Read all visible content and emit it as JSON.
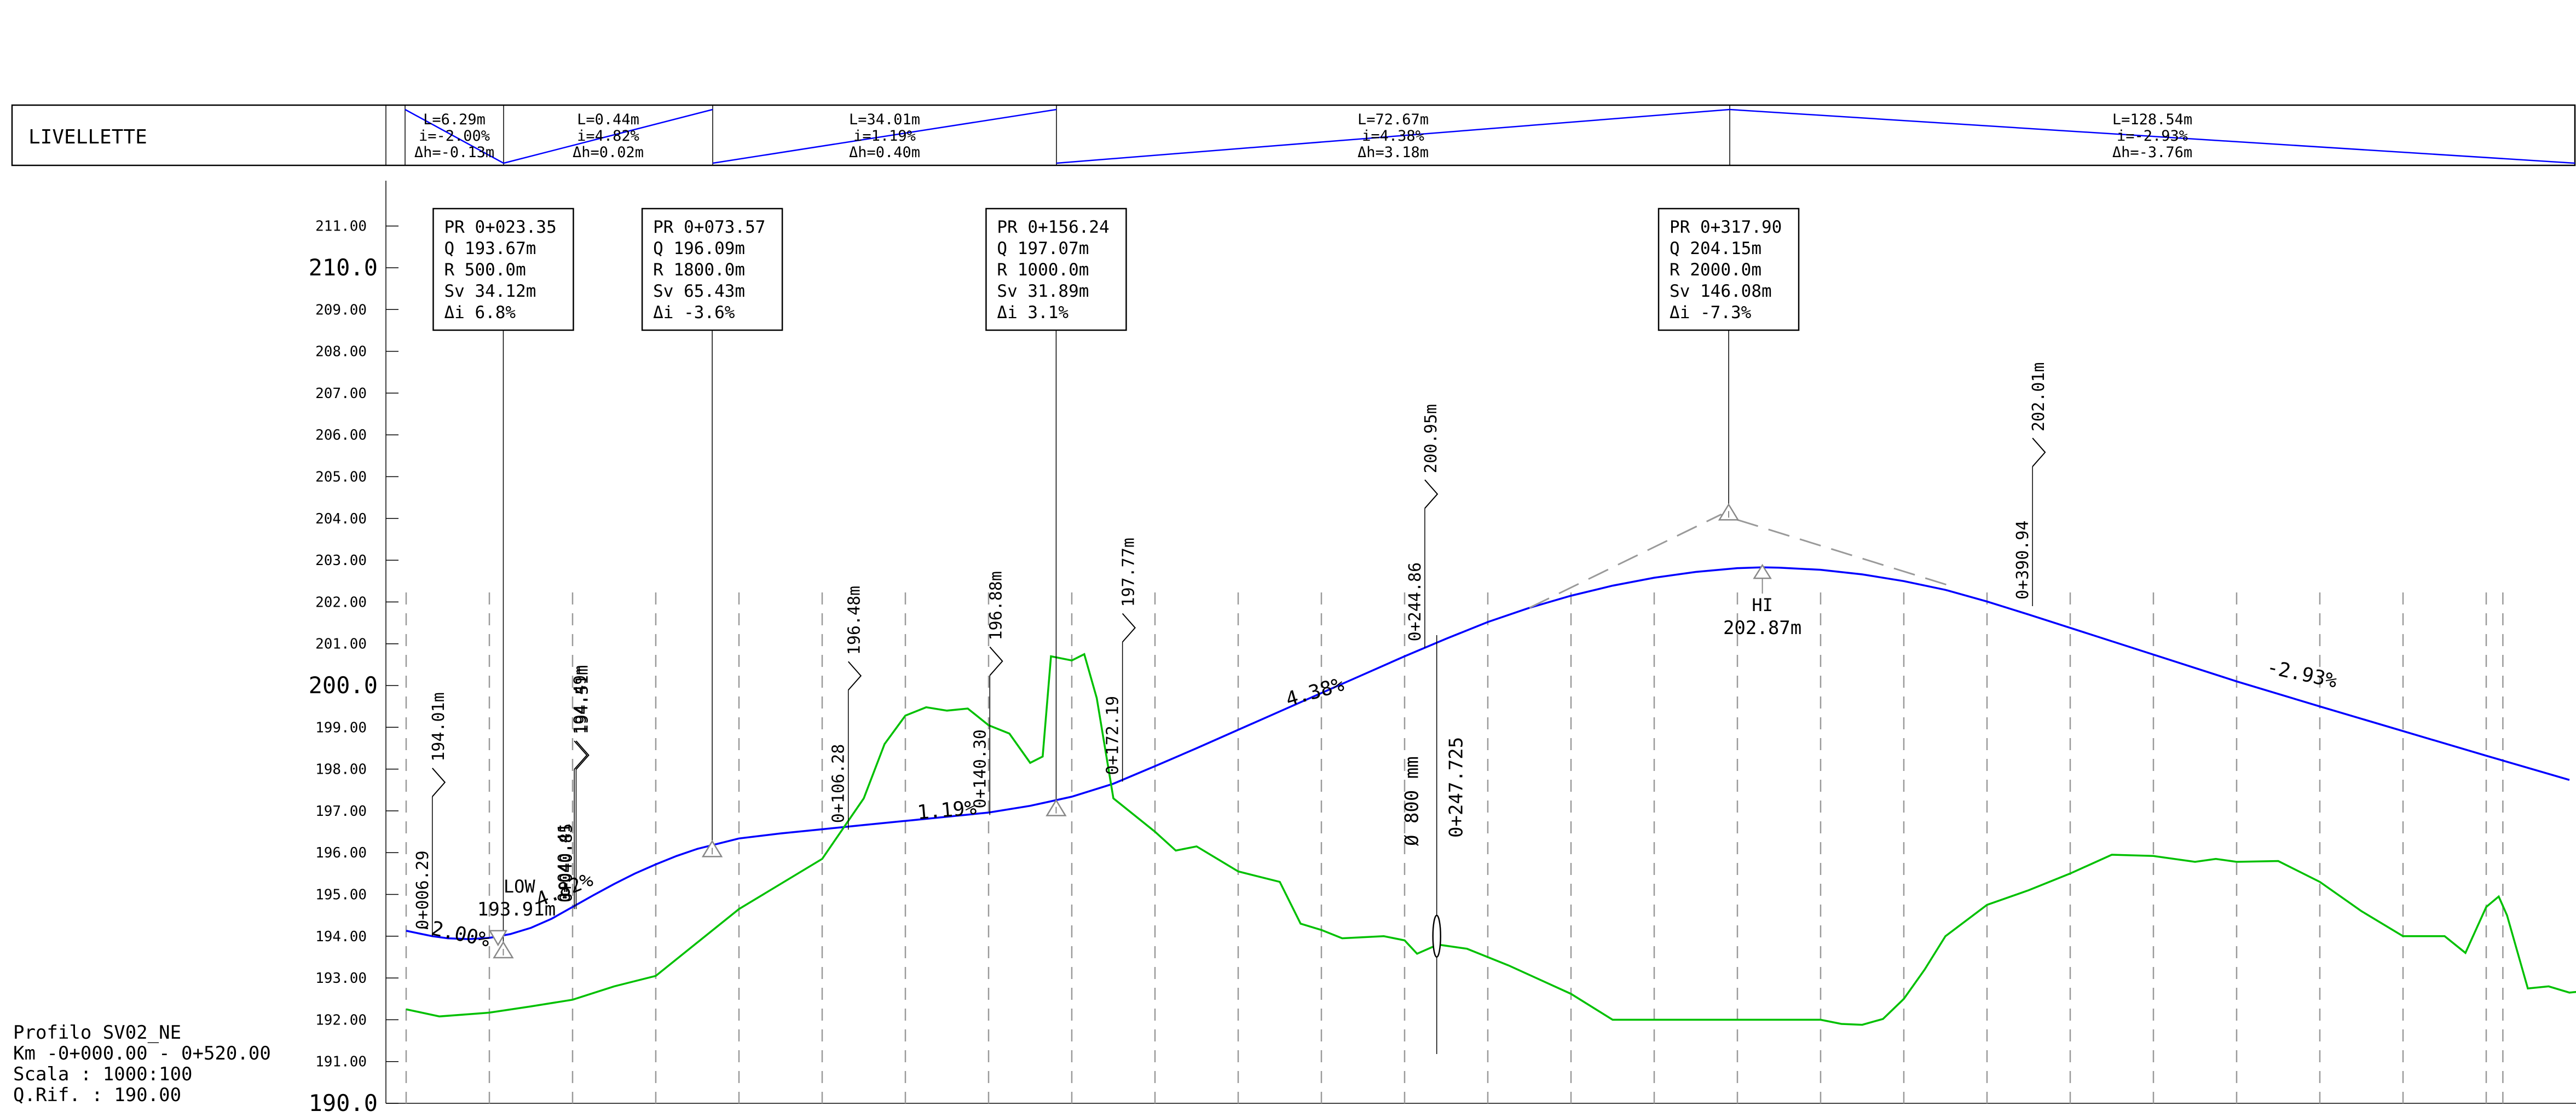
{
  "livellette": {
    "label": "LIVELLETTE",
    "segments": [
      {
        "L": "L=6.29m",
        "i": "i=-2.00%",
        "dh": "Δh=-0.13m"
      },
      {
        "L": "L=0.44m",
        "i": "i=4.82%",
        "dh": "Δh=0.02m"
      },
      {
        "L": "L=34.01m",
        "i": "i=1.19%",
        "dh": "Δh=0.40m"
      },
      {
        "L": "L=72.67m",
        "i": "i=4.38%",
        "dh": "Δh=3.18m"
      },
      {
        "L": "L=128.54m",
        "i": "i=-2.93%",
        "dh": "Δh=-3.76m"
      }
    ]
  },
  "y_axis": {
    "ticks": [
      {
        "v": 190,
        "label": "190.0",
        "major": true
      },
      {
        "v": 191,
        "label": "191.00"
      },
      {
        "v": 192,
        "label": "192.00"
      },
      {
        "v": 193,
        "label": "193.00"
      },
      {
        "v": 194,
        "label": "194.00"
      },
      {
        "v": 195,
        "label": "195.00"
      },
      {
        "v": 196,
        "label": "196.00"
      },
      {
        "v": 197,
        "label": "197.00"
      },
      {
        "v": 198,
        "label": "198.00"
      },
      {
        "v": 199,
        "label": "199.00"
      },
      {
        "v": 200,
        "label": "200.0",
        "major": true
      },
      {
        "v": 201,
        "label": "201.00"
      },
      {
        "v": 202,
        "label": "202.00"
      },
      {
        "v": 203,
        "label": "203.00"
      },
      {
        "v": 204,
        "label": "204.00"
      },
      {
        "v": 205,
        "label": "205.00"
      },
      {
        "v": 206,
        "label": "206.00"
      },
      {
        "v": 207,
        "label": "207.00"
      },
      {
        "v": 208,
        "label": "208.00"
      },
      {
        "v": 209,
        "label": "209.00"
      },
      {
        "v": 210,
        "label": "210.0",
        "major": true
      },
      {
        "v": 211,
        "label": "211.00"
      }
    ]
  },
  "chart_data": {
    "type": "line",
    "x_unit": "m",
    "y_unit": "m",
    "xlim": [
      -5,
      520
    ],
    "ylim": [
      190,
      212
    ],
    "grid_x": [
      0,
      20,
      40,
      60,
      80,
      100,
      120,
      140,
      160,
      180,
      200,
      220,
      240,
      260,
      280,
      300,
      320,
      340,
      360,
      380,
      400,
      420,
      440,
      460,
      480,
      500,
      504
    ],
    "series": [
      {
        "color": "#0000ff",
        "points": [
          [
            0,
            194.13
          ],
          [
            6.3,
            194.0
          ],
          [
            10,
            193.95
          ],
          [
            15,
            193.93
          ],
          [
            20,
            193.96
          ],
          [
            25,
            194.05
          ],
          [
            30,
            194.2
          ],
          [
            35,
            194.42
          ],
          [
            40,
            194.7
          ],
          [
            45,
            194.98
          ],
          [
            50,
            195.25
          ],
          [
            55,
            195.5
          ],
          [
            60,
            195.72
          ],
          [
            65,
            195.92
          ],
          [
            70,
            196.09
          ],
          [
            80,
            196.34
          ],
          [
            90,
            196.46
          ],
          [
            100,
            196.56
          ],
          [
            110,
            196.66
          ],
          [
            120,
            196.76
          ],
          [
            130,
            196.86
          ],
          [
            140,
            196.96
          ],
          [
            150,
            197.12
          ],
          [
            160,
            197.34
          ],
          [
            170,
            197.65
          ],
          [
            180,
            198.07
          ],
          [
            190,
            198.5
          ],
          [
            200,
            198.94
          ],
          [
            210,
            199.38
          ],
          [
            220,
            199.82
          ],
          [
            230,
            200.26
          ],
          [
            240,
            200.7
          ],
          [
            250,
            201.12
          ],
          [
            260,
            201.52
          ],
          [
            270,
            201.86
          ],
          [
            280,
            202.15
          ],
          [
            290,
            202.39
          ],
          [
            300,
            202.58
          ],
          [
            310,
            202.72
          ],
          [
            320,
            202.81
          ],
          [
            326,
            202.83
          ],
          [
            330,
            202.82
          ],
          [
            340,
            202.77
          ],
          [
            350,
            202.66
          ],
          [
            360,
            202.5
          ],
          [
            370,
            202.29
          ],
          [
            380,
            202.01
          ],
          [
            390,
            201.7
          ],
          [
            400,
            201.38
          ],
          [
            420,
            200.74
          ],
          [
            440,
            200.1
          ],
          [
            460,
            199.5
          ],
          [
            480,
            198.91
          ],
          [
            500,
            198.32
          ],
          [
            520,
            197.74
          ]
        ]
      },
      {
        "color": "#00c000",
        "points": [
          [
            0,
            192.25
          ],
          [
            8,
            192.08
          ],
          [
            20,
            192.17
          ],
          [
            30,
            192.32
          ],
          [
            40,
            192.48
          ],
          [
            50,
            192.8
          ],
          [
            60,
            193.05
          ],
          [
            70,
            193.85
          ],
          [
            80,
            194.65
          ],
          [
            100,
            195.85
          ],
          [
            110,
            197.3
          ],
          [
            115,
            198.6
          ],
          [
            120,
            199.28
          ],
          [
            125,
            199.48
          ],
          [
            130,
            199.4
          ],
          [
            135,
            199.45
          ],
          [
            140,
            199.05
          ],
          [
            145,
            198.85
          ],
          [
            150,
            198.15
          ],
          [
            153,
            198.3
          ],
          [
            155,
            200.7
          ],
          [
            160,
            200.6
          ],
          [
            163,
            200.75
          ],
          [
            166,
            199.7
          ],
          [
            170,
            197.3
          ],
          [
            175,
            196.9
          ],
          [
            180,
            196.5
          ],
          [
            185,
            196.05
          ],
          [
            190,
            196.15
          ],
          [
            195,
            195.85
          ],
          [
            200,
            195.55
          ],
          [
            210,
            195.3
          ],
          [
            215,
            194.3
          ],
          [
            220,
            194.15
          ],
          [
            225,
            193.95
          ],
          [
            235,
            194.0
          ],
          [
            240,
            193.9
          ],
          [
            243,
            193.58
          ],
          [
            248,
            193.8
          ],
          [
            255,
            193.7
          ],
          [
            265,
            193.3
          ],
          [
            280,
            192.62
          ],
          [
            290,
            192.0
          ],
          [
            340,
            192.0
          ],
          [
            345,
            191.9
          ],
          [
            350,
            191.88
          ],
          [
            355,
            192.02
          ],
          [
            360,
            192.5
          ],
          [
            365,
            193.2
          ],
          [
            370,
            194.0
          ],
          [
            380,
            194.75
          ],
          [
            390,
            195.1
          ],
          [
            400,
            195.5
          ],
          [
            410,
            195.95
          ],
          [
            420,
            195.92
          ],
          [
            430,
            195.78
          ],
          [
            435,
            195.85
          ],
          [
            440,
            195.78
          ],
          [
            450,
            195.8
          ],
          [
            460,
            195.3
          ],
          [
            470,
            194.6
          ],
          [
            480,
            194.0
          ],
          [
            490,
            194.0
          ],
          [
            495,
            193.6
          ],
          [
            500,
            194.7
          ],
          [
            503,
            194.95
          ],
          [
            505,
            194.5
          ],
          [
            510,
            192.75
          ],
          [
            515,
            192.8
          ],
          [
            520,
            192.65
          ],
          [
            525,
            192.7
          ],
          [
            527,
            192.9
          ],
          [
            529,
            192.82
          ]
        ]
      },
      {
        "color": "#9a9a9a",
        "dashed": true,
        "points": [
          [
            270,
            201.86
          ],
          [
            316,
            204.09
          ],
          [
            372,
            202.36
          ]
        ]
      }
    ],
    "annotations": [
      {
        "x": 6.3,
        "y": 194.0,
        "label": "LOW",
        "value": "193.91m"
      },
      {
        "x": 326,
        "y": 202.83,
        "label": "HI",
        "value": "202.87m"
      }
    ]
  },
  "vertical_curves": [
    {
      "x": 23.35,
      "y": 193.67,
      "pr": "PR 0+023.35",
      "q": "Q  193.67m",
      "r": "R  500.0m",
      "sv": "Sv 34.12m",
      "di": "Δi 6.8%"
    },
    {
      "x": 73.57,
      "y": 196.09,
      "pr": "PR 0+073.57",
      "q": "Q  196.09m",
      "r": "R  1800.0m",
      "sv": "Sv 65.43m",
      "di": "Δi -3.6%"
    },
    {
      "x": 156.24,
      "y": 197.07,
      "pr": "PR 0+156.24",
      "q": "Q  197.07m",
      "r": "R  1000.0m",
      "sv": "Sv 31.89m",
      "di": "Δi 3.1%"
    },
    {
      "x": 317.9,
      "y": 204.15,
      "pr": "PR 0+317.90",
      "q": "Q  204.15m",
      "r": "R  2000.0m",
      "sv": "Sv 146.08m",
      "di": "Δi -7.3%"
    }
  ],
  "markers": [
    {
      "x": 6.29,
      "base": 194.0,
      "station": "0+006.29",
      "elev": "194.01m"
    },
    {
      "x": 40.41,
      "base": 194.65,
      "station": "0+040.41",
      "elev": "194.49m"
    },
    {
      "x": 40.85,
      "base": 194.65,
      "station": "0+040.85",
      "elev": "194.51m"
    },
    {
      "x": 106.28,
      "base": 196.55,
      "station": "0+106.28",
      "elev": "196.48m"
    },
    {
      "x": 140.3,
      "base": 196.9,
      "station": "0+140.30",
      "elev": "196.88m"
    },
    {
      "x": 172.19,
      "base": 197.7,
      "station": "0+172.19",
      "elev": "197.77m"
    },
    {
      "x": 244.86,
      "base": 200.9,
      "station": "0+244.86",
      "elev": "200.95m"
    },
    {
      "x": 390.94,
      "base": 201.9,
      "station": "0+390.94",
      "elev": "202.01m"
    }
  ],
  "grade_labels": [
    {
      "x": 3,
      "y": 194.1,
      "text": "-2.00%"
    },
    {
      "x": 32,
      "y": 194.7,
      "text": "4.82%"
    },
    {
      "x": 123,
      "y": 196.8,
      "text": "1.19%"
    },
    {
      "x": 212,
      "y": 199.5,
      "text": "4.38%"
    },
    {
      "x": 447,
      "y": 200.3,
      "text": "-2.93%"
    }
  ],
  "pipe": {
    "x": 247.725,
    "station": "0+247.725",
    "diameter": "Ø  800  mm",
    "y_center": 194.0
  },
  "info": {
    "profile": "Profilo  SV02_NE",
    "km": "Km  -0+000.00  -  0+520.00",
    "scale": "Scala  :  1000:100",
    "qrif": "Q.Rif.  :  190.00"
  }
}
